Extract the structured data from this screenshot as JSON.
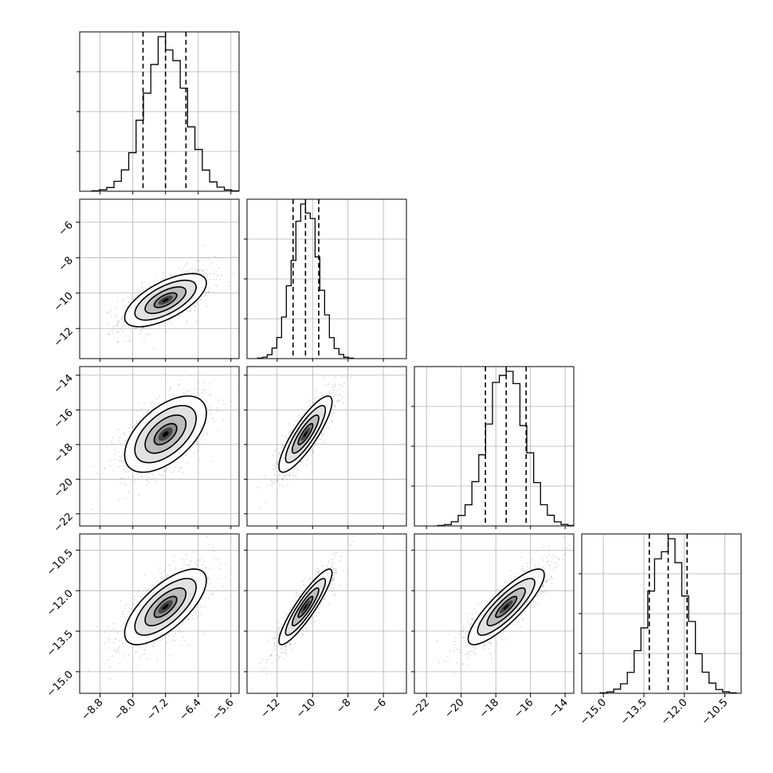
{
  "chart_data": {
    "type": "corner",
    "parameters": [
      {
        "index": 0,
        "ticks": [
          -8.8,
          -8.0,
          -7.2,
          -6.4,
          -5.6
        ],
        "tick_labels": [
          "−8.8",
          "−8.0",
          "−7.2",
          "−6.4",
          "−5.6"
        ],
        "range": [
          -9.3,
          -5.4
        ],
        "mean": -7.2,
        "sd": 0.5,
        "quantiles": [
          -7.75,
          -7.2,
          -6.7
        ]
      },
      {
        "index": 1,
        "ticks": [
          -12,
          -10,
          -8,
          -6
        ],
        "tick_labels": [
          "−12",
          "−10",
          "−8",
          "−6"
        ],
        "range": [
          -13.7,
          -4.7
        ],
        "mean": -10.4,
        "sd": 0.75,
        "quantiles": [
          -11.1,
          -10.4,
          -9.65
        ]
      },
      {
        "index": 2,
        "ticks": [
          -22,
          -20,
          -18,
          -16,
          -14
        ],
        "tick_labels": [
          "−22",
          "−20",
          "−18",
          "−16",
          "−14"
        ],
        "range": [
          -22.7,
          -13.5
        ],
        "mean": -17.4,
        "sd": 1.1,
        "quantiles": [
          -18.6,
          -17.4,
          -16.25
        ]
      },
      {
        "index": 3,
        "ticks": [
          -15.0,
          -13.5,
          -12.0,
          -10.5
        ],
        "tick_labels": [
          "−15.0",
          "−13.5",
          "−12.0",
          "−10.5"
        ],
        "range": [
          -15.8,
          -9.9
        ],
        "mean": -12.6,
        "sd": 0.7,
        "quantiles": [
          -13.3,
          -12.6,
          -11.9
        ]
      }
    ],
    "correlations": {
      "1,0": 0.65,
      "2,0": 0.55,
      "2,1": 0.85,
      "3,0": 0.7,
      "3,1": 0.9,
      "3,2": 0.85
    },
    "quantile_levels": [
      0.16,
      0.5,
      0.84
    ],
    "grid": true,
    "histogram_bins": 20
  }
}
